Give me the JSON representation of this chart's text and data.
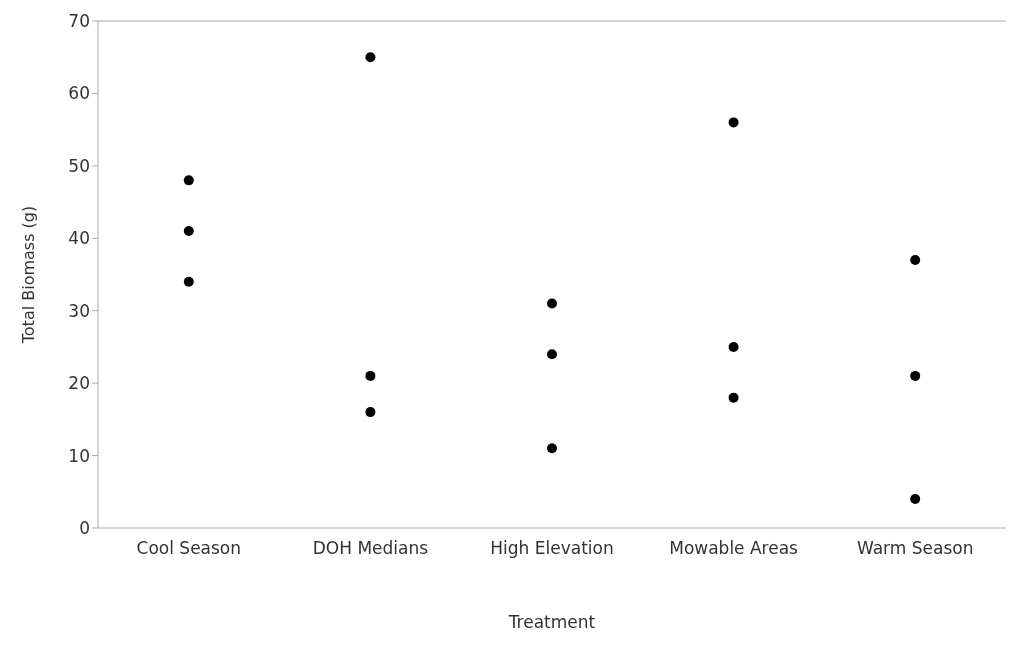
{
  "chart_data": {
    "type": "scatter",
    "xlabel": "Treatment",
    "ylabel": "Total Biomass (g)",
    "categories": [
      "Cool Season",
      "DOH Medians",
      "High Elevation",
      "Mowable Areas",
      "Warm Season"
    ],
    "series": [
      {
        "color": "#000000",
        "x": [
          "Cool Season",
          "Cool Season",
          "Cool Season",
          "DOH Medians",
          "DOH Medians",
          "DOH Medians",
          "High Elevation",
          "High Elevation",
          "High Elevation",
          "Mowable Areas",
          "Mowable Areas",
          "Mowable Areas",
          "Warm Season",
          "Warm Season",
          "Warm Season"
        ],
        "values": [
          48,
          41,
          34,
          65,
          21,
          16,
          31,
          24,
          11,
          56,
          25,
          18,
          37,
          21,
          4
        ]
      }
    ],
    "ylim": [
      0,
      70
    ],
    "yticks": [
      0,
      10,
      20,
      30,
      40,
      50,
      60,
      70
    ],
    "grid": false,
    "marker": "circle"
  }
}
